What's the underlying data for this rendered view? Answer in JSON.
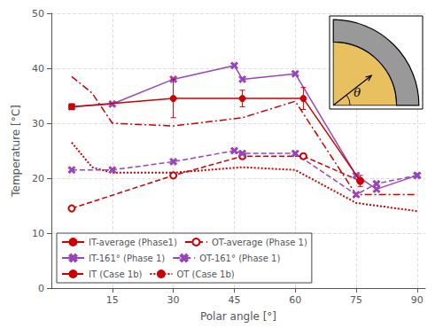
{
  "chart_data": {
    "type": "line",
    "xlabel": "Polar angle [°]",
    "ylabel": "Temperature [°C]",
    "xlim": [
      0,
      92
    ],
    "ylim": [
      0,
      50
    ],
    "xticks": [
      15,
      30,
      45,
      60,
      75,
      90
    ],
    "yticks": [
      0,
      10,
      20,
      30,
      40,
      50
    ],
    "grid": true,
    "legend": "lower left",
    "annotations": [
      {
        "text": "θ",
        "colors": [
          "#E8C060",
          "#999999"
        ]
      }
    ],
    "series": [
      {
        "name": "IT-average (Phase1)",
        "color": "#cc0000",
        "marker": "circle",
        "line_style": "solid",
        "x": [
          5,
          30,
          47,
          62,
          76
        ],
        "values": [
          33.0,
          34.5,
          34.5,
          34.5,
          19.5
        ],
        "yerr": [
          0.5,
          3.5,
          1.5,
          2.0,
          1.0
        ]
      },
      {
        "name": "OT-average (Phase 1)",
        "color": "#cc0000",
        "marker": "open_circle",
        "line_style": "dashed",
        "x": [
          5,
          30,
          47,
          62,
          76
        ],
        "values": [
          14.5,
          20.5,
          24.0,
          24.0,
          19.5
        ]
      },
      {
        "name": "IT-161° (Phase 1)",
        "color": "#9944bb",
        "marker": "x",
        "line_style": "solid",
        "x": [
          5,
          15,
          30,
          45,
          47,
          60,
          75,
          80,
          90
        ],
        "values": [
          33.0,
          33.5,
          38.0,
          40.5,
          38.0,
          39.0,
          20.5,
          18.0,
          20.5
        ]
      },
      {
        "name": "OT-161° (Phase 1)",
        "color": "#9944bb",
        "marker": "x",
        "line_style": "dashed",
        "x": [
          5,
          15,
          30,
          45,
          47,
          60,
          75,
          80,
          90
        ],
        "values": [
          21.5,
          21.5,
          23.0,
          25.0,
          24.5,
          24.5,
          17.0,
          19.0,
          20.5
        ]
      },
      {
        "name": "IT (Case 1b)",
        "color": "#cc0000",
        "marker": "none",
        "line_style": "dashdot",
        "x": [
          5,
          10,
          15,
          30,
          47,
          60,
          75,
          90
        ],
        "values": [
          38.5,
          35.5,
          30.0,
          29.5,
          31.0,
          34.0,
          17.0,
          17.0
        ]
      },
      {
        "name": "OT (Case 1b)",
        "color": "#cc0000",
        "marker": "none",
        "line_style": "dotted",
        "x": [
          5,
          10,
          15,
          30,
          47,
          60,
          75,
          90
        ],
        "values": [
          26.5,
          22.0,
          21.0,
          21.0,
          22.0,
          21.5,
          15.5,
          14.0
        ]
      }
    ]
  }
}
